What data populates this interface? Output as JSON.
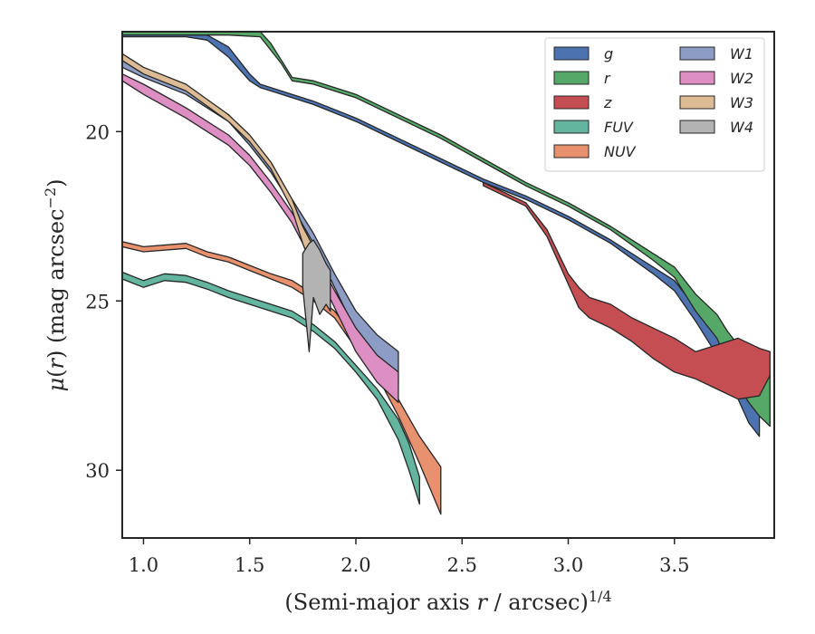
{
  "chart_data": {
    "type": "area",
    "xlabel": "(Semi-major axis r / arcsec)^(1/4)",
    "ylabel": "μ(r) (mag arcsec^−2)",
    "xlim": [
      0.9,
      3.97
    ],
    "ylim": [
      32.0,
      17.05
    ],
    "y_inverted": true,
    "xticks": [
      "1.0",
      "1.5",
      "2.0",
      "2.5",
      "3.0",
      "3.5"
    ],
    "yticks": [
      "20",
      "25",
      "30"
    ],
    "grid": false,
    "legend": {
      "position": "top-right",
      "columns": 2
    },
    "series": [
      {
        "name": "g",
        "color": "#4c72b0",
        "x": [
          0.9,
          1.0,
          1.1,
          1.2,
          1.3,
          1.4,
          1.5,
          1.55,
          1.6,
          1.7,
          1.8,
          2.0,
          2.2,
          2.4,
          2.6,
          2.8,
          3.0,
          3.2,
          3.4,
          3.5,
          3.6,
          3.7,
          3.75,
          3.8,
          3.85,
          3.9
        ],
        "y_upper": [
          17.1,
          17.1,
          17.1,
          17.1,
          17.15,
          17.5,
          18.3,
          18.6,
          18.7,
          18.9,
          19.1,
          19.6,
          20.2,
          20.8,
          21.4,
          21.9,
          22.5,
          23.2,
          24.0,
          24.4,
          25.2,
          25.8,
          26.2,
          26.6,
          27.0,
          27.3
        ],
        "y_lower": [
          17.2,
          17.2,
          17.2,
          17.2,
          17.3,
          17.8,
          18.5,
          18.7,
          18.8,
          19.0,
          19.2,
          19.7,
          20.3,
          20.9,
          21.5,
          22.0,
          22.6,
          23.3,
          24.2,
          24.7,
          25.6,
          26.6,
          27.3,
          27.9,
          28.6,
          29.0
        ]
      },
      {
        "name": "r",
        "color": "#55a868",
        "x": [
          0.9,
          1.0,
          1.2,
          1.4,
          1.55,
          1.6,
          1.65,
          1.7,
          1.8,
          2.0,
          2.2,
          2.4,
          2.6,
          2.8,
          3.0,
          3.2,
          3.4,
          3.5,
          3.6,
          3.7,
          3.75,
          3.8,
          3.85,
          3.9,
          3.95
        ],
        "y_upper": [
          17.05,
          17.05,
          17.05,
          17.05,
          17.05,
          17.4,
          17.9,
          18.4,
          18.5,
          18.9,
          19.5,
          20.1,
          20.8,
          21.5,
          22.1,
          22.8,
          23.6,
          24.0,
          24.8,
          25.4,
          25.9,
          26.3,
          26.7,
          27.0,
          27.2
        ],
        "y_lower": [
          17.15,
          17.15,
          17.15,
          17.15,
          17.2,
          17.6,
          18.0,
          18.5,
          18.6,
          19.0,
          19.6,
          20.2,
          20.9,
          21.6,
          22.2,
          22.9,
          23.8,
          24.3,
          25.3,
          26.1,
          26.8,
          27.5,
          28.0,
          28.4,
          28.7
        ]
      },
      {
        "name": "z",
        "color": "#c44e52",
        "x": [
          2.6,
          2.8,
          2.9,
          3.0,
          3.05,
          3.1,
          3.2,
          3.3,
          3.4,
          3.5,
          3.6,
          3.7,
          3.8,
          3.9,
          3.95
        ],
        "y_upper": [
          21.5,
          22.1,
          22.9,
          24.2,
          24.6,
          24.9,
          25.1,
          25.5,
          25.8,
          26.1,
          26.5,
          26.3,
          26.1,
          26.4,
          26.5
        ],
        "y_lower": [
          21.6,
          22.2,
          23.1,
          24.5,
          25.2,
          25.5,
          25.8,
          26.2,
          26.7,
          27.1,
          27.3,
          27.6,
          27.9,
          27.8,
          27.2
        ]
      },
      {
        "name": "FUV",
        "color": "#64b5a0",
        "x": [
          0.9,
          1.0,
          1.1,
          1.2,
          1.3,
          1.4,
          1.5,
          1.6,
          1.7,
          1.8,
          1.9,
          2.0,
          2.1,
          2.2,
          2.25,
          2.3
        ],
        "y_upper": [
          24.15,
          24.4,
          24.2,
          24.25,
          24.45,
          24.7,
          24.9,
          25.1,
          25.3,
          25.7,
          26.2,
          26.9,
          27.6,
          28.5,
          29.2,
          30.2
        ],
        "y_lower": [
          24.35,
          24.6,
          24.4,
          24.45,
          24.65,
          24.9,
          25.1,
          25.3,
          25.5,
          25.9,
          26.4,
          27.1,
          27.9,
          29.1,
          30.0,
          31.0
        ]
      },
      {
        "name": "NUV",
        "color": "#e8916e",
        "x": [
          0.9,
          1.0,
          1.2,
          1.3,
          1.4,
          1.5,
          1.6,
          1.7,
          1.8,
          1.9,
          2.0,
          2.1,
          2.2,
          2.3,
          2.4
        ],
        "y_upper": [
          23.25,
          23.4,
          23.3,
          23.55,
          23.7,
          23.95,
          24.2,
          24.4,
          24.8,
          25.3,
          26.1,
          26.9,
          27.9,
          29.0,
          29.9
        ],
        "y_lower": [
          23.4,
          23.55,
          23.45,
          23.7,
          23.85,
          24.1,
          24.35,
          24.6,
          25.0,
          25.5,
          26.4,
          27.2,
          28.4,
          29.8,
          31.3
        ]
      },
      {
        "name": "W1",
        "color": "#8c9cc4",
        "x": [
          0.9,
          1.0,
          1.2,
          1.4,
          1.5,
          1.6,
          1.7,
          1.8,
          1.9,
          2.0,
          2.1,
          2.2
        ],
        "y_upper": [
          17.9,
          18.2,
          18.7,
          19.5,
          20.2,
          21.0,
          22.0,
          23.0,
          24.2,
          25.3,
          26.0,
          26.5
        ],
        "y_lower": [
          18.1,
          18.4,
          18.9,
          19.7,
          20.4,
          21.2,
          22.2,
          23.3,
          24.6,
          25.9,
          26.7,
          27.5
        ]
      },
      {
        "name": "W2",
        "color": "#dd8fc4",
        "x": [
          0.9,
          1.0,
          1.2,
          1.4,
          1.5,
          1.6,
          1.7,
          1.8,
          1.9,
          2.0,
          2.1,
          2.2
        ],
        "y_upper": [
          18.3,
          18.6,
          19.3,
          20.1,
          20.7,
          21.5,
          22.4,
          23.5,
          24.7,
          25.8,
          26.6,
          27.1
        ],
        "y_lower": [
          18.5,
          18.9,
          19.6,
          20.4,
          21.0,
          21.8,
          22.7,
          23.9,
          25.2,
          26.5,
          27.4,
          28.0
        ]
      },
      {
        "name": "W3",
        "color": "#ddbb94",
        "x": [
          0.9,
          1.0,
          1.2,
          1.4,
          1.5,
          1.6,
          1.7,
          1.75,
          1.8
        ],
        "y_upper": [
          17.7,
          18.1,
          18.6,
          19.5,
          20.1,
          20.9,
          22.0,
          22.8,
          23.4
        ],
        "y_lower": [
          17.9,
          18.3,
          18.8,
          19.7,
          20.3,
          21.1,
          22.3,
          23.3,
          24.1
        ]
      },
      {
        "name": "W4",
        "color": "#b3b3b3",
        "x": [
          1.75,
          1.78,
          1.8,
          1.83,
          1.86,
          1.88
        ],
        "y_upper": [
          23.6,
          23.3,
          23.2,
          23.5,
          23.9,
          24.1
        ],
        "y_lower": [
          24.6,
          26.5,
          24.9,
          25.4,
          25.1,
          25.3
        ]
      }
    ]
  }
}
